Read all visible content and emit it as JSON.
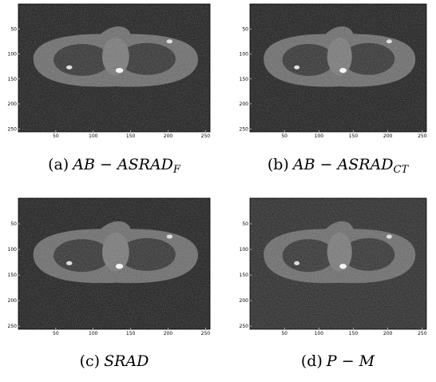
{
  "panels": [
    {
      "caption": {
        "label": "(a)",
        "main": "AB − ASRAD",
        "sub": "F"
      },
      "xlim": [
        0,
        256
      ],
      "ylim": [
        0,
        256
      ],
      "xticks": [
        50,
        100,
        150,
        200,
        250
      ],
      "yticks": [
        50,
        100,
        150,
        200,
        250
      ]
    },
    {
      "caption": {
        "label": "(b)",
        "main": "AB − ASRAD",
        "sub": "CT"
      },
      "xlim": [
        0,
        256
      ],
      "ylim": [
        0,
        256
      ],
      "xticks": [
        50,
        100,
        150,
        200,
        250
      ],
      "yticks": [
        50,
        100,
        150,
        200,
        250
      ]
    },
    {
      "caption": {
        "label": "(c)",
        "main": "SRAD"
      },
      "xlim": [
        0,
        256
      ],
      "ylim": [
        0,
        256
      ],
      "xticks": [
        50,
        100,
        150,
        200,
        250
      ],
      "yticks": [
        50,
        100,
        150,
        200,
        250
      ]
    },
    {
      "caption": {
        "label": "(d)",
        "main": "P − M"
      },
      "xlim": [
        0,
        256
      ],
      "ylim": [
        0,
        256
      ],
      "xticks": [
        50,
        100,
        150,
        200,
        250
      ],
      "yticks": [
        50,
        100,
        150,
        200,
        250
      ]
    }
  ]
}
